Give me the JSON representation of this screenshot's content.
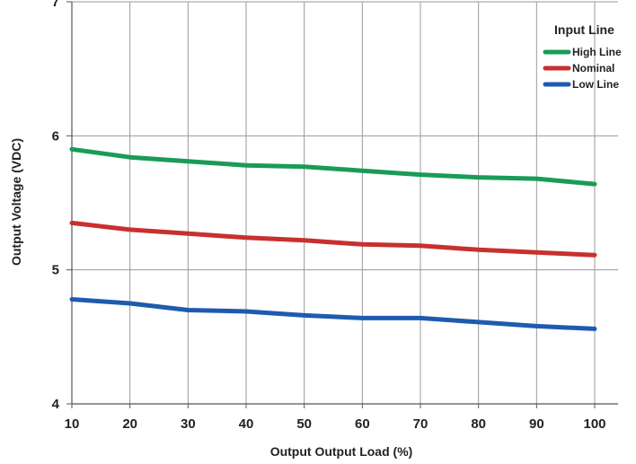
{
  "chart_data": {
    "type": "line",
    "xlabel": "Output Output Load (%)",
    "ylabel": "Output Voltage (VDC)",
    "xlim": [
      10,
      100
    ],
    "ylim": [
      4,
      7
    ],
    "x_ticks": [
      "10",
      "20",
      "30",
      "40",
      "50",
      "60",
      "70",
      "80",
      "90",
      "100"
    ],
    "y_ticks": [
      "4",
      "5",
      "6",
      "7"
    ],
    "grid": true,
    "legend": {
      "title": "Input Line",
      "placement": "top-right"
    },
    "x": [
      10,
      20,
      30,
      40,
      50,
      60,
      70,
      80,
      90,
      100
    ],
    "series": [
      {
        "name": "High Line",
        "color": "#1a9b58",
        "values": [
          5.9,
          5.84,
          5.81,
          5.78,
          5.77,
          5.74,
          5.71,
          5.69,
          5.68,
          5.64
        ]
      },
      {
        "name": "Nominal",
        "color": "#c8302e",
        "values": [
          5.35,
          5.3,
          5.27,
          5.24,
          5.22,
          5.19,
          5.18,
          5.15,
          5.13,
          5.11
        ]
      },
      {
        "name": "Low Line",
        "color": "#1e5bb0",
        "values": [
          4.78,
          4.75,
          4.7,
          4.69,
          4.66,
          4.64,
          4.64,
          4.61,
          4.58,
          4.56
        ]
      }
    ]
  }
}
